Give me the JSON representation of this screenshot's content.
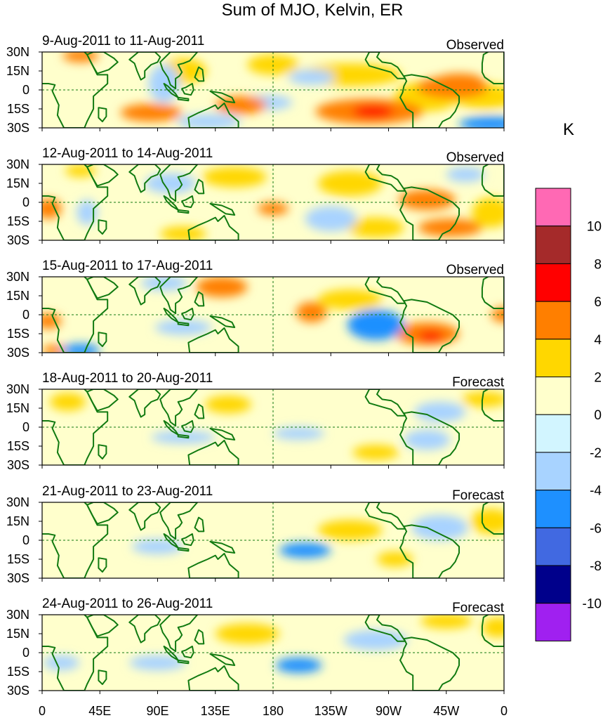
{
  "chart_data": {
    "type": "heatmap",
    "title": "Sum of MJO, Kelvin, ER",
    "units": "K",
    "colorbar": {
      "levels": [
        -10,
        -8,
        -6,
        -4,
        -2,
        0,
        2,
        4,
        6,
        8,
        10
      ],
      "colors": [
        "#a020f0",
        "#00008b",
        "#4169e1",
        "#1e90ff",
        "#a8d3ff",
        "#d2f5ff",
        "#ffffcc",
        "#ffd700",
        "#ff7f00",
        "#ff0000",
        "#a52a2a",
        "#ff69b4"
      ],
      "labels": [
        "10",
        "8",
        "6",
        "4",
        "2",
        "0",
        "-2",
        "-4",
        "-6",
        "-8",
        "-10"
      ]
    },
    "x_ticks": [
      "0",
      "45E",
      "90E",
      "135E",
      "180",
      "135W",
      "90W",
      "45W",
      "0"
    ],
    "x_tick_values": [
      0,
      45,
      90,
      135,
      180,
      225,
      270,
      315,
      360
    ],
    "y_ticks": [
      "30N",
      "15N",
      "0",
      "15S",
      "30S"
    ],
    "y_tick_values": [
      30,
      15,
      0,
      -15,
      -30
    ],
    "xlim": [
      0,
      360
    ],
    "ylim": [
      -30,
      30
    ],
    "panels": [
      {
        "period": "9-Aug-2011 to 11-Aug-2011",
        "status": "Observed",
        "anomalies": [
          {
            "lon": 320,
            "lat": 2,
            "w": 28,
            "h": 9,
            "v": 5.5
          },
          {
            "lon": 325,
            "lat": 8,
            "w": 18,
            "h": 5,
            "v": 4.5
          },
          {
            "lon": 255,
            "lat": -17,
            "w": 42,
            "h": 10,
            "v": 4.6
          },
          {
            "lon": 258,
            "lat": -17,
            "w": 16,
            "h": 5,
            "v": 7.5
          },
          {
            "lon": 85,
            "lat": -18,
            "w": 24,
            "h": 7,
            "v": 4.5
          },
          {
            "lon": 155,
            "lat": -12,
            "w": 20,
            "h": 7,
            "v": 4.5
          },
          {
            "lon": 30,
            "lat": 27,
            "w": 14,
            "h": 5,
            "v": 4.5
          },
          {
            "lon": 240,
            "lat": 12,
            "w": 40,
            "h": 9,
            "v": 2.5
          },
          {
            "lon": 300,
            "lat": -5,
            "w": 25,
            "h": 12,
            "v": 2.5
          },
          {
            "lon": 345,
            "lat": -5,
            "w": 25,
            "h": 10,
            "v": 3
          },
          {
            "lon": 180,
            "lat": 20,
            "w": 20,
            "h": 8,
            "v": 2.5
          },
          {
            "lon": 110,
            "lat": 15,
            "w": 18,
            "h": 10,
            "v": 2.5
          },
          {
            "lon": 95,
            "lat": 5,
            "w": 12,
            "h": 15,
            "v": -3
          },
          {
            "lon": 130,
            "lat": -25,
            "w": 25,
            "h": 6,
            "v": -3
          },
          {
            "lon": 350,
            "lat": -27,
            "w": 25,
            "h": 6,
            "v": -5
          },
          {
            "lon": 175,
            "lat": -10,
            "w": 20,
            "h": 6,
            "v": -3
          },
          {
            "lon": 210,
            "lat": 10,
            "w": 18,
            "h": 6,
            "v": -2.5
          }
        ]
      },
      {
        "period": "12-Aug-2011 to 14-Aug-2011",
        "status": "Observed",
        "anomalies": [
          {
            "lon": 318,
            "lat": -20,
            "w": 25,
            "h": 7,
            "v": 5.2
          },
          {
            "lon": 300,
            "lat": 2,
            "w": 22,
            "h": 8,
            "v": 4.2
          },
          {
            "lon": 260,
            "lat": -20,
            "w": 22,
            "h": 8,
            "v": 3
          },
          {
            "lon": 5,
            "lat": -5,
            "w": 10,
            "h": 8,
            "v": 4.5
          },
          {
            "lon": 180,
            "lat": -5,
            "w": 12,
            "h": 5,
            "v": 4.2
          },
          {
            "lon": 30,
            "lat": 25,
            "w": 12,
            "h": 5,
            "v": 2.5
          },
          {
            "lon": 150,
            "lat": 20,
            "w": 25,
            "h": 8,
            "v": 2.5
          },
          {
            "lon": 240,
            "lat": 15,
            "w": 25,
            "h": 10,
            "v": 2.5
          },
          {
            "lon": 350,
            "lat": -8,
            "w": 15,
            "h": 12,
            "v": 3
          },
          {
            "lon": 225,
            "lat": -13,
            "w": 20,
            "h": 10,
            "v": -4
          },
          {
            "lon": 330,
            "lat": 22,
            "w": 15,
            "h": 6,
            "v": -4
          },
          {
            "lon": 35,
            "lat": -8,
            "w": 8,
            "h": 10,
            "v": -4
          },
          {
            "lon": 100,
            "lat": 15,
            "w": 20,
            "h": 8,
            "v": -2.5
          },
          {
            "lon": 110,
            "lat": -25,
            "w": 18,
            "h": 6,
            "v": 2.5
          }
        ]
      },
      {
        "period": "15-Aug-2011 to 17-Aug-2011",
        "status": "Observed",
        "anomalies": [
          {
            "lon": 300,
            "lat": -15,
            "w": 25,
            "h": 9,
            "v": 4.6
          },
          {
            "lon": 303,
            "lat": -17,
            "w": 10,
            "h": 4,
            "v": 6.5
          },
          {
            "lon": 210,
            "lat": 2,
            "w": 12,
            "h": 8,
            "v": 5
          },
          {
            "lon": 140,
            "lat": 22,
            "w": 20,
            "h": 8,
            "v": 4.2
          },
          {
            "lon": 5,
            "lat": -5,
            "w": 10,
            "h": 6,
            "v": 4.5
          },
          {
            "lon": 10,
            "lat": -28,
            "w": 10,
            "h": 4,
            "v": 4.5
          },
          {
            "lon": 260,
            "lat": -8,
            "w": 22,
            "h": 12,
            "v": -5
          },
          {
            "lon": 95,
            "lat": 25,
            "w": 18,
            "h": 6,
            "v": -4
          },
          {
            "lon": 110,
            "lat": -10,
            "w": 22,
            "h": 6,
            "v": -4
          },
          {
            "lon": 30,
            "lat": -28,
            "w": 15,
            "h": 5,
            "v": -5
          },
          {
            "lon": 240,
            "lat": 12,
            "w": 25,
            "h": 8,
            "v": 2.5
          },
          {
            "lon": 360,
            "lat": 0,
            "w": 10,
            "h": 6,
            "v": 4.5
          }
        ]
      },
      {
        "period": "18-Aug-2011 to 20-Aug-2011",
        "status": "Forecast",
        "anomalies": [
          {
            "lon": 145,
            "lat": 18,
            "w": 18,
            "h": 7,
            "v": 3
          },
          {
            "lon": 20,
            "lat": 20,
            "w": 14,
            "h": 7,
            "v": 3
          },
          {
            "lon": 260,
            "lat": -20,
            "w": 18,
            "h": 6,
            "v": 2.6
          },
          {
            "lon": 345,
            "lat": 22,
            "w": 18,
            "h": 6,
            "v": 2.6
          },
          {
            "lon": 110,
            "lat": -8,
            "w": 25,
            "h": 5,
            "v": -3
          },
          {
            "lon": 200,
            "lat": -5,
            "w": 20,
            "h": 5,
            "v": -2.5
          },
          {
            "lon": 310,
            "lat": 12,
            "w": 20,
            "h": 8,
            "v": -2.5
          },
          {
            "lon": 300,
            "lat": -10,
            "w": 18,
            "h": 8,
            "v": -2.5
          }
        ]
      },
      {
        "period": "21-Aug-2011 to 23-Aug-2011",
        "status": "Forecast",
        "anomalies": [
          {
            "lon": 205,
            "lat": -8,
            "w": 20,
            "h": 6,
            "v": -4.2
          },
          {
            "lon": 90,
            "lat": -5,
            "w": 20,
            "h": 6,
            "v": -2.8
          },
          {
            "lon": 275,
            "lat": -15,
            "w": 14,
            "h": 6,
            "v": 2.8
          },
          {
            "lon": 350,
            "lat": 15,
            "w": 16,
            "h": 10,
            "v": 2.8
          },
          {
            "lon": 310,
            "lat": 10,
            "w": 22,
            "h": 10,
            "v": -2.5
          },
          {
            "lon": 240,
            "lat": 8,
            "w": 25,
            "h": 8,
            "v": 2.2
          }
        ]
      },
      {
        "period": "24-Aug-2011 to 26-Aug-2011",
        "status": "Forecast",
        "anomalies": [
          {
            "lon": 200,
            "lat": -10,
            "w": 18,
            "h": 6,
            "v": -4.8
          },
          {
            "lon": 90,
            "lat": -8,
            "w": 22,
            "h": 6,
            "v": -3
          },
          {
            "lon": 15,
            "lat": -8,
            "w": 14,
            "h": 6,
            "v": -2.5
          },
          {
            "lon": 315,
            "lat": 25,
            "w": 20,
            "h": 6,
            "v": 2.8
          },
          {
            "lon": 355,
            "lat": 20,
            "w": 12,
            "h": 8,
            "v": 2.8
          },
          {
            "lon": 260,
            "lat": 10,
            "w": 25,
            "h": 8,
            "v": -2.5
          },
          {
            "lon": 160,
            "lat": 15,
            "w": 25,
            "h": 8,
            "v": 2.2
          }
        ]
      }
    ]
  }
}
